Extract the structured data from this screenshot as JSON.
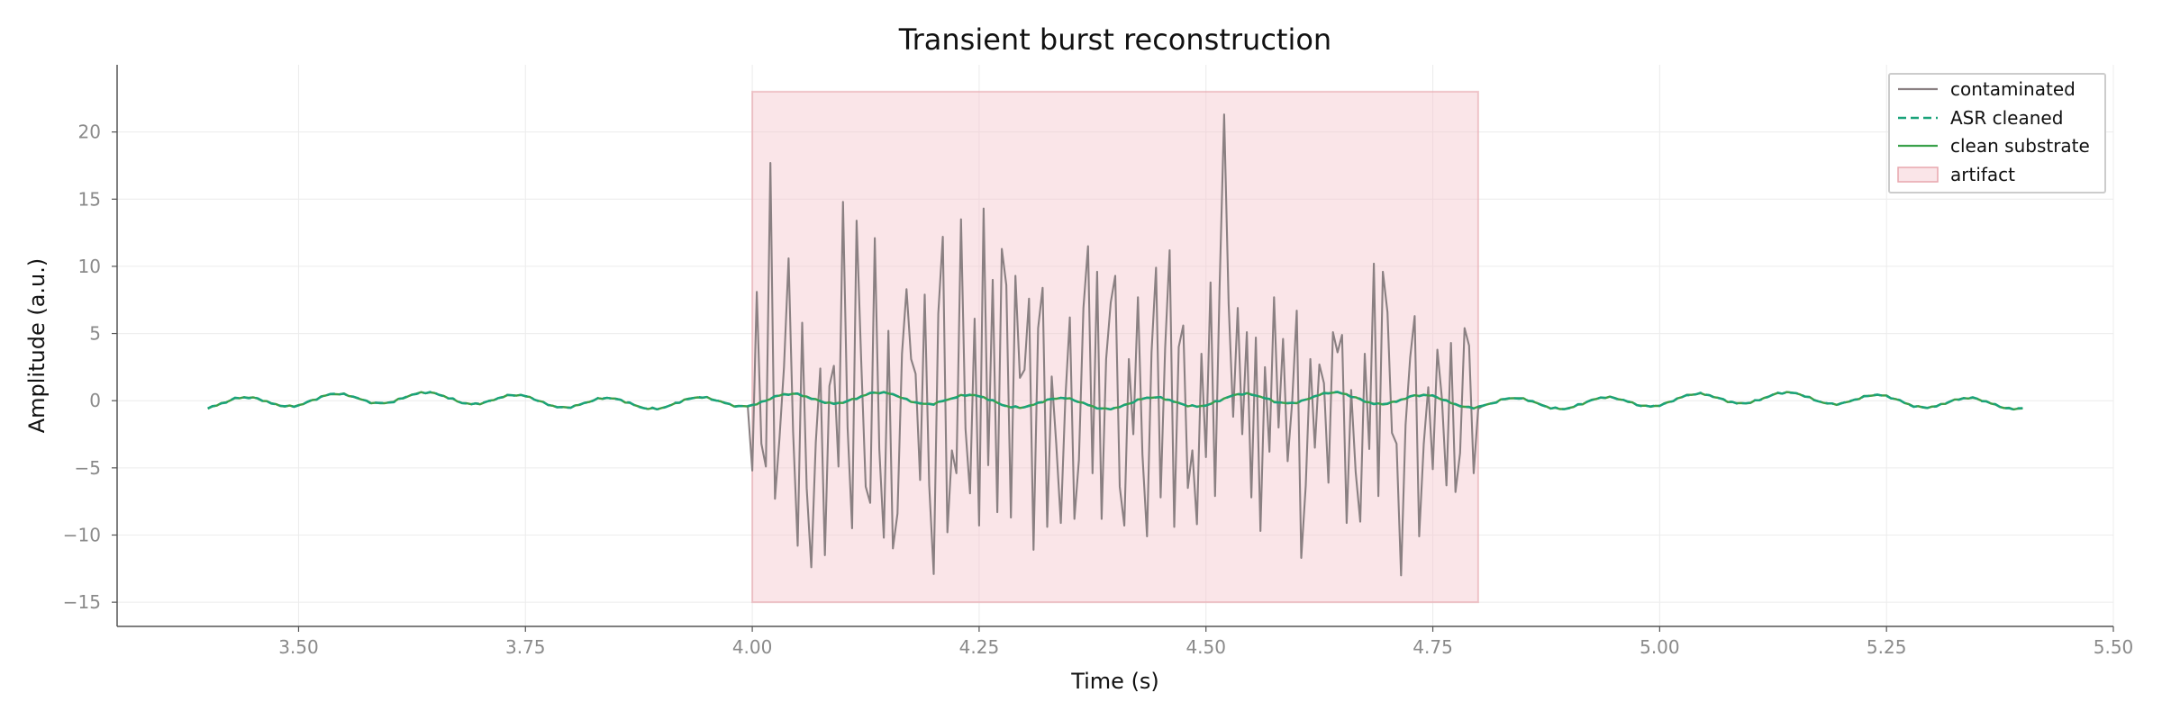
{
  "chart_data": {
    "type": "line",
    "title": "Transient burst reconstruction",
    "xlabel": "Time (s)",
    "ylabel": "Amplitude (a.u.)",
    "xlim": [
      3.3,
      5.5
    ],
    "ylim": [
      -16.8,
      25
    ],
    "xticks": [
      3.5,
      3.75,
      4.0,
      4.25,
      4.5,
      4.75,
      5.0,
      5.25,
      5.5
    ],
    "xtick_labels": [
      "3.50",
      "3.75",
      "4.00",
      "4.25",
      "4.50",
      "4.75",
      "5.00",
      "5.25",
      "5.50"
    ],
    "yticks": [
      -15,
      -10,
      -5,
      0,
      5,
      10,
      15,
      20
    ],
    "ytick_labels": [
      "−15",
      "−10",
      "−5",
      "0",
      "5",
      "10",
      "15",
      "20"
    ],
    "grid": true,
    "legend_position": "top-right",
    "x_start": 3.4,
    "x_end": 5.4,
    "fs": 200,
    "artifact_region": {
      "x": [
        4.0,
        4.8
      ],
      "y": [
        -15,
        23
      ],
      "label": "artifact",
      "color": "#f4c6cb"
    },
    "series": [
      {
        "name": "contaminated",
        "color": "#8a8082",
        "style": "solid",
        "burst_x": [
          4.0,
          4.8
        ],
        "burst_values": [
          -5.2,
          8.1,
          -3.2,
          4.6,
          -4.9,
          17.7,
          -7.3,
          -2.8,
          7.9,
          2.5,
          10.6,
          -2.3,
          -10.8,
          1.5,
          5.8,
          -6.5,
          -12.4,
          -3.1,
          -5.4,
          2.4,
          -11.5,
          1.1,
          2.6,
          8.7,
          -4.9,
          14.8,
          -2.0,
          -9.5,
          10.4,
          13.4,
          3.0,
          -6.4,
          -7.6,
          -4.5,
          12.1,
          -3.6,
          -10.2,
          5.2,
          -1.9,
          -11.0,
          -8.4,
          3.5,
          8.3,
          -2.1,
          3.1,
          2.0,
          -5.9,
          7.9,
          -3.1,
          -6.3,
          -12.9,
          6.5,
          12.2,
          -9.8,
          2.8,
          -3.7,
          -5.4,
          13.5,
          -2.1,
          9.1,
          -6.9,
          6.1,
          -9.3,
          14.3,
          -9.2,
          -4.8,
          9.0,
          -8.3,
          11.3,
          0.9,
          8.6,
          -8.7,
          9.3,
          1.7,
          -6.0,
          2.3,
          7.6,
          -11.1,
          5.4,
          -3.5,
          8.4,
          -9.4,
          1.8,
          -3.2,
          2.0,
          -9.1,
          0.1,
          6.2,
          -8.8,
          3.1,
          -4.4,
          6.9,
          11.5,
          -5.4,
          -1.7,
          9.6,
          -8.8,
          3.1,
          7.3,
          -6.7,
          9.3,
          -6.4,
          -9.3,
          3.1,
          -2.5,
          3.7,
          7.7,
          -4.0,
          -10.1,
          3.6,
          -4.1,
          9.9,
          -7.2,
          3.9,
          11.2,
          -4.0,
          -9.4,
          4.0,
          5.6,
          -6.5,
          7.6,
          -3.7,
          -9.2,
          3.5,
          -4.2,
          -3.0,
          8.8,
          -7.1,
          8.3,
          21.3,
          -2.2,
          7.2,
          -1.2,
          6.9,
          -2.5,
          -4.5,
          5.1,
          -7.2,
          4.7,
          -9.7,
          6.1,
          2.5,
          -3.8,
          7.7,
          -2.0,
          -12.7,
          4.6,
          -4.5,
          -0.1,
          6.7,
          -11.7,
          4.4,
          -6.3,
          3.1,
          -3.5,
          2.7,
          -9.8,
          1.3,
          -6.1,
          5.1,
          3.6,
          -11.4,
          4.9,
          -9.1,
          0.8,
          -5.3,
          4.8,
          -9.0,
          3.5,
          -3.6,
          10.2,
          -1.9,
          -7.1,
          9.6,
          6.6,
          -2.4,
          2.7,
          -3.2,
          -13.0,
          -1.8,
          3.2,
          -4.4,
          6.3,
          -10.1,
          -3.2,
          1.0,
          2.7,
          -5.1,
          3.8,
          0.2,
          -6.3,
          5.6,
          4.3,
          -6.8,
          -3.9,
          5.4,
          -8.4,
          4.1,
          -5.4,
          -0.6
        ]
      },
      {
        "name": "ASR cleaned",
        "color": "#1aa37a",
        "style": "dashed"
      },
      {
        "name": "clean substrate",
        "color": "#3aa14b",
        "style": "solid"
      }
    ],
    "substrate_model": {
      "components": [
        {
          "amplitude": 0.4,
          "frequency_hz": 10.0,
          "phase": -1.0
        },
        {
          "amplitude": 0.22,
          "frequency_hz": 2.0,
          "phase": 0.0
        }
      ],
      "noise_amplitude": 0.07
    }
  }
}
